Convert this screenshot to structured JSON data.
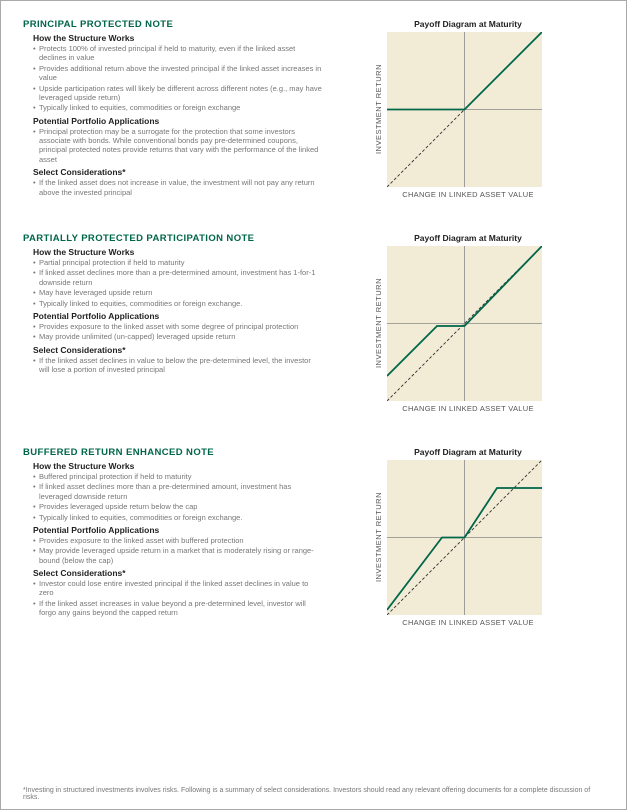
{
  "sections": [
    {
      "title": "PRINCIPAL PROTECTED NOTE",
      "how_label": "How the Structure Works",
      "how": [
        "Protects 100% of invested principal if held to maturity, even if the linked asset declines in value",
        "Provides additional return above the invested principal if the linked asset increases in value",
        "Upside participation rates will likely be different across different notes (e.g., may have leveraged upside return)",
        "Typically linked to equities, commodities or foreign exchange"
      ],
      "app_label": "Potential Portfolio Applications",
      "app": [
        "Principal protection may be a surrogate for the protection that some investors associate with bonds. While conventional bonds pay pre-determined coupons, principal protected notes provide returns that vary with the performance of the linked asset"
      ],
      "sel_label": "Select Considerations*",
      "sel": [
        "If the linked asset does not increase in value, the investment will not pay any return above the invested principal"
      ],
      "chart": {
        "title": "Payoff Diagram at Maturity",
        "ylabel": "INVESTMENT RETURN",
        "xlabel": "CHANGE IN LINKED ASSET VALUE",
        "size": 155,
        "bg": "#f2ecd7",
        "axis_color": "#888888",
        "ref_color": "#333333",
        "ref_dash": "3,2",
        "payoff_color": "#006649",
        "payoff_width": 1.8,
        "ref_points": [
          [
            0,
            155
          ],
          [
            155,
            0
          ]
        ],
        "payoff_points": [
          [
            0,
            77.5
          ],
          [
            77.5,
            77.5
          ],
          [
            155,
            0
          ]
        ]
      }
    },
    {
      "title": "PARTIALLY PROTECTED PARTICIPATION NOTE",
      "how_label": "How the Structure Works",
      "how": [
        "Partial principal protection if held to maturity",
        "If linked asset declines more than a pre-determined amount, investment has 1-for-1 downside return",
        "May have leveraged upside return",
        "Typically linked to equities, commodities or foreign exchange."
      ],
      "app_label": "Potential Portfolio Applications",
      "app": [
        "Provides exposure to the linked asset with some degree of principal protection",
        "May provide unlimited (un-capped) leveraged upside return"
      ],
      "sel_label": "Select Considerations*",
      "sel": [
        "If the linked asset declines in value to below the pre-determined level, the investor will lose a portion of invested principal"
      ],
      "chart": {
        "title": "Payoff Diagram at Maturity",
        "ylabel": "INVESTMENT RETURN",
        "xlabel": "CHANGE IN LINKED ASSET VALUE",
        "size": 155,
        "bg": "#f2ecd7",
        "axis_color": "#888888",
        "ref_color": "#333333",
        "ref_dash": "3,2",
        "payoff_color": "#006649",
        "payoff_width": 1.8,
        "ref_points": [
          [
            0,
            155
          ],
          [
            155,
            0
          ]
        ],
        "payoff_points": [
          [
            0,
            130
          ],
          [
            50,
            80
          ],
          [
            77.5,
            80
          ],
          [
            155,
            0
          ]
        ]
      }
    },
    {
      "title": "BUFFERED RETURN ENHANCED NOTE",
      "how_label": "How the Structure Works",
      "how": [
        "Buffered principal protection if held to maturity",
        "If linked asset declines more than a pre-determined amount, investment has leveraged downside return",
        "Provides leveraged upside return below the cap",
        "Typically linked to equities, commodities or foreign exchange."
      ],
      "app_label": "Potential Portfolio Applications",
      "app": [
        "Provides exposure to the linked asset with buffered protection",
        "May provide leveraged upside return in a market that is moderately rising or range-bound (below the cap)"
      ],
      "sel_label": "Select Considerations*",
      "sel": [
        "Investor could lose entire invested principal if the linked asset declines in value to zero",
        "If the linked asset increases in value beyond a pre-determined level, investor will forgo any gains beyond the capped return"
      ],
      "chart": {
        "title": "Payoff Diagram at Maturity",
        "ylabel": "INVESTMENT RETURN",
        "xlabel": "CHANGE IN LINKED ASSET VALUE",
        "size": 155,
        "bg": "#f2ecd7",
        "axis_color": "#888888",
        "ref_color": "#333333",
        "ref_dash": "3,2",
        "payoff_color": "#006649",
        "payoff_width": 1.8,
        "ref_points": [
          [
            0,
            155
          ],
          [
            155,
            0
          ]
        ],
        "payoff_points": [
          [
            0,
            150
          ],
          [
            55,
            77.5
          ],
          [
            77.5,
            77.5
          ],
          [
            110,
            28
          ],
          [
            155,
            28
          ]
        ]
      }
    }
  ],
  "footnote": "*Investing in structured investments involves risks. Following is a summary of select considerations. Investors should read any relevant offering documents for a complete discussion of risks."
}
